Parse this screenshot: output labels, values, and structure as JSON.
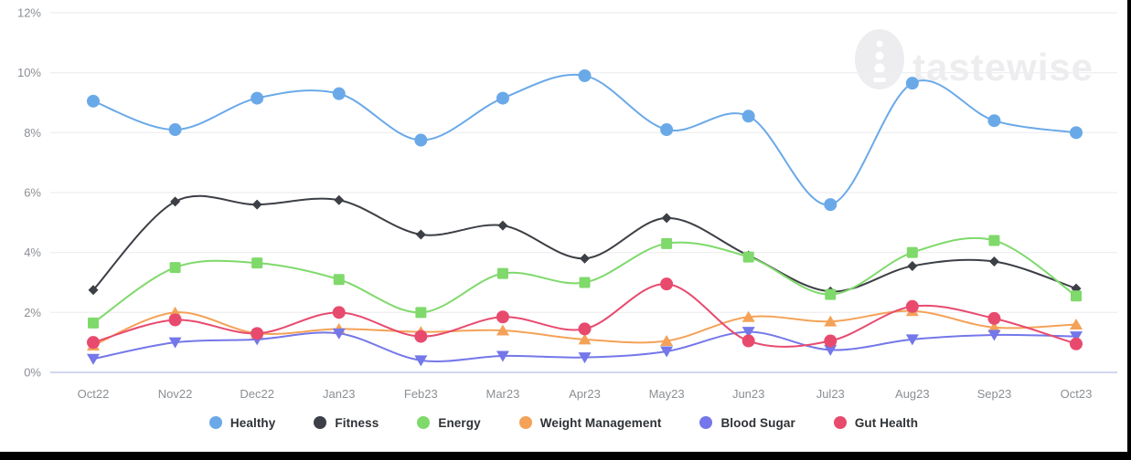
{
  "watermark": {
    "text": "tastewise",
    "logo": "tastewise-egg-logo",
    "color": "#ededef"
  },
  "axis": {
    "tick_color": "#8b8f94",
    "grid_color": "#eeeef1",
    "zero_line_color": "#c9d3f0"
  },
  "chart_data": {
    "type": "line",
    "title": "",
    "xlabel": "",
    "ylabel": "",
    "ylim": [
      0,
      12
    ],
    "grid": true,
    "legend_position": "bottom",
    "yticks": [
      "0%",
      "2%",
      "4%",
      "6%",
      "8%",
      "10%",
      "12%"
    ],
    "x": [
      "Oct22",
      "Nov22",
      "Dec22",
      "Jan23",
      "Feb23",
      "Mar23",
      "Apr23",
      "May23",
      "Jun23",
      "Jul23",
      "Aug23",
      "Sep23",
      "Oct23"
    ],
    "series": [
      {
        "name": "Healthy",
        "color": "#6aa9e8",
        "marker": "circle",
        "values": [
          9.05,
          8.1,
          9.15,
          9.3,
          7.75,
          9.15,
          9.9,
          8.1,
          8.55,
          5.6,
          9.65,
          8.4,
          8.0
        ]
      },
      {
        "name": "Fitness",
        "color": "#3c3f45",
        "marker": "diamond",
        "values": [
          2.75,
          5.7,
          5.6,
          5.75,
          4.6,
          4.9,
          3.8,
          5.15,
          3.9,
          2.7,
          3.55,
          3.7,
          2.8
        ]
      },
      {
        "name": "Energy",
        "color": "#7fd96b",
        "marker": "square",
        "values": [
          1.65,
          3.5,
          3.65,
          3.1,
          2.0,
          3.3,
          3.0,
          4.3,
          3.85,
          2.6,
          4.0,
          4.4,
          2.55
        ]
      },
      {
        "name": "Weight Management",
        "color": "#f4a258",
        "marker": "triangle-up",
        "values": [
          0.9,
          2.0,
          1.3,
          1.45,
          1.35,
          1.4,
          1.1,
          1.05,
          1.85,
          1.7,
          2.05,
          1.5,
          1.6
        ]
      },
      {
        "name": "Blood Sugar",
        "color": "#7477e9",
        "marker": "triangle-down",
        "values": [
          0.45,
          1.0,
          1.1,
          1.3,
          0.4,
          0.55,
          0.5,
          0.7,
          1.35,
          0.75,
          1.1,
          1.25,
          1.2
        ]
      },
      {
        "name": "Gut Health",
        "color": "#e84a6e",
        "marker": "circle",
        "values": [
          1.0,
          1.75,
          1.3,
          2.0,
          1.2,
          1.85,
          1.45,
          2.95,
          1.05,
          1.05,
          2.2,
          1.8,
          0.95
        ]
      }
    ]
  }
}
